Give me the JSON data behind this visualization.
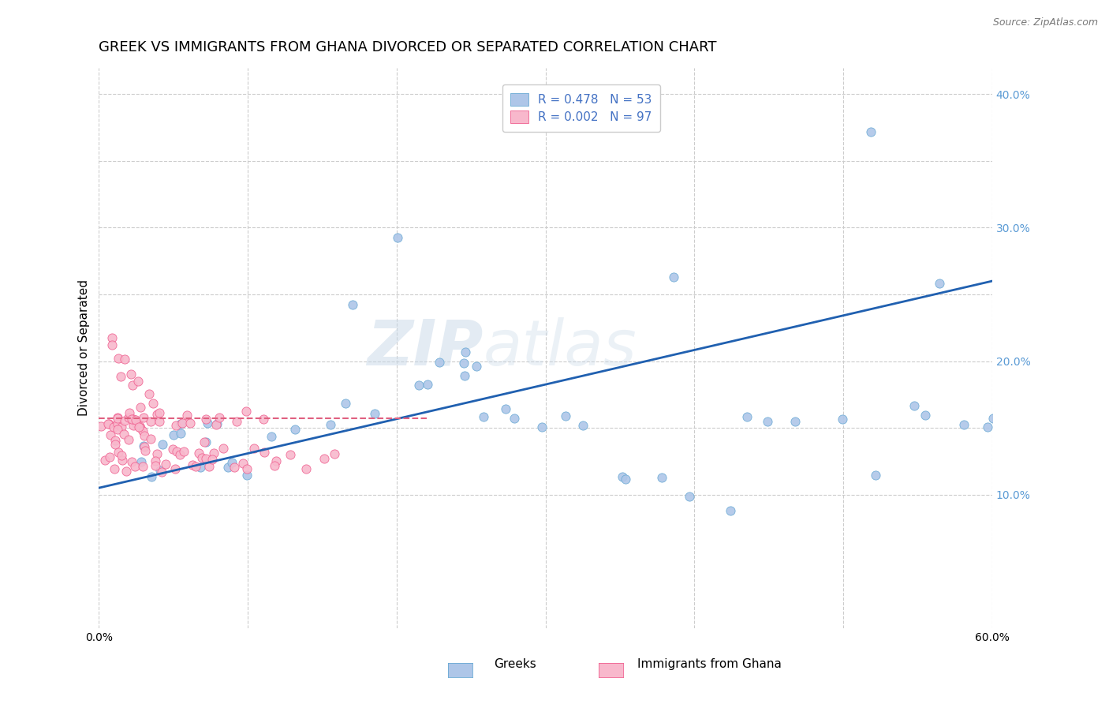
{
  "title": "GREEK VS IMMIGRANTS FROM GHANA DIVORCED OR SEPARATED CORRELATION CHART",
  "source": "Source: ZipAtlas.com",
  "ylabel": "Divorced or Separated",
  "watermark_zip": "ZIP",
  "watermark_atlas": "atlas",
  "blue_color": "#5b9bd5",
  "pink_color": "#f06090",
  "blue_scatter_face": "#aec6e8",
  "blue_scatter_edge": "#6aaad4",
  "pink_scatter_face": "#f8b8cc",
  "pink_scatter_edge": "#f06090",
  "blue_line_color": "#2060b0",
  "pink_line_color": "#e06080",
  "grid_color": "#cccccc",
  "xlim": [
    0.0,
    0.6
  ],
  "ylim": [
    0.0,
    0.42
  ],
  "bg_color": "#ffffff",
  "title_fontsize": 13,
  "axis_label_fontsize": 11,
  "tick_fontsize": 10,
  "legend_text_color": "#4472c4",
  "blue_trendline_x": [
    0.0,
    0.6
  ],
  "blue_trendline_y": [
    0.105,
    0.26
  ],
  "pink_trendline_x": [
    0.0,
    0.22
  ],
  "pink_trendline_y": [
    0.157,
    0.157
  ],
  "greek_x": [
    0.025,
    0.03,
    0.035,
    0.04,
    0.045,
    0.05,
    0.055,
    0.06,
    0.065,
    0.07,
    0.075,
    0.08,
    0.085,
    0.09,
    0.1,
    0.12,
    0.13,
    0.155,
    0.165,
    0.19,
    0.21,
    0.22,
    0.23,
    0.24,
    0.245,
    0.25,
    0.255,
    0.265,
    0.27,
    0.28,
    0.3,
    0.31,
    0.33,
    0.35,
    0.36,
    0.38,
    0.4,
    0.42,
    0.43,
    0.45,
    0.465,
    0.5,
    0.52,
    0.55,
    0.56,
    0.57,
    0.58,
    0.59,
    0.6,
    0.52,
    0.38,
    0.2,
    0.17
  ],
  "greek_y": [
    0.135,
    0.125,
    0.115,
    0.125,
    0.135,
    0.145,
    0.14,
    0.155,
    0.13,
    0.14,
    0.145,
    0.155,
    0.125,
    0.13,
    0.12,
    0.145,
    0.155,
    0.145,
    0.17,
    0.16,
    0.175,
    0.175,
    0.2,
    0.205,
    0.195,
    0.19,
    0.205,
    0.155,
    0.16,
    0.155,
    0.155,
    0.16,
    0.155,
    0.115,
    0.105,
    0.105,
    0.095,
    0.085,
    0.155,
    0.155,
    0.155,
    0.16,
    0.115,
    0.155,
    0.155,
    0.26,
    0.155,
    0.155,
    0.155,
    0.37,
    0.27,
    0.29,
    0.245
  ],
  "ghana_x": [
    0.003,
    0.005,
    0.006,
    0.007,
    0.008,
    0.009,
    0.01,
    0.011,
    0.012,
    0.013,
    0.014,
    0.015,
    0.016,
    0.017,
    0.018,
    0.019,
    0.02,
    0.021,
    0.022,
    0.023,
    0.024,
    0.025,
    0.026,
    0.027,
    0.028,
    0.029,
    0.03,
    0.031,
    0.032,
    0.033,
    0.034,
    0.035,
    0.005,
    0.008,
    0.01,
    0.012,
    0.015,
    0.018,
    0.02,
    0.022,
    0.025,
    0.028,
    0.03,
    0.032,
    0.035,
    0.038,
    0.04,
    0.042,
    0.045,
    0.048,
    0.05,
    0.053,
    0.055,
    0.058,
    0.06,
    0.063,
    0.065,
    0.068,
    0.07,
    0.073,
    0.075,
    0.078,
    0.08,
    0.085,
    0.09,
    0.095,
    0.1,
    0.105,
    0.11,
    0.115,
    0.12,
    0.13,
    0.14,
    0.15,
    0.16,
    0.008,
    0.01,
    0.012,
    0.015,
    0.018,
    0.02,
    0.025,
    0.028,
    0.032,
    0.035,
    0.04,
    0.045,
    0.05,
    0.055,
    0.06,
    0.065,
    0.07,
    0.075,
    0.08,
    0.09,
    0.1,
    0.11
  ],
  "ghana_y": [
    0.155,
    0.16,
    0.155,
    0.15,
    0.145,
    0.155,
    0.16,
    0.155,
    0.15,
    0.145,
    0.155,
    0.16,
    0.155,
    0.145,
    0.155,
    0.16,
    0.155,
    0.15,
    0.155,
    0.16,
    0.155,
    0.15,
    0.145,
    0.155,
    0.16,
    0.145,
    0.155,
    0.15,
    0.145,
    0.155,
    0.16,
    0.155,
    0.135,
    0.13,
    0.125,
    0.13,
    0.125,
    0.13,
    0.125,
    0.13,
    0.125,
    0.13,
    0.125,
    0.13,
    0.125,
    0.13,
    0.125,
    0.13,
    0.125,
    0.13,
    0.125,
    0.13,
    0.125,
    0.13,
    0.125,
    0.13,
    0.125,
    0.13,
    0.125,
    0.13,
    0.125,
    0.13,
    0.125,
    0.13,
    0.125,
    0.13,
    0.125,
    0.13,
    0.125,
    0.13,
    0.125,
    0.13,
    0.125,
    0.13,
    0.125,
    0.225,
    0.21,
    0.195,
    0.195,
    0.195,
    0.19,
    0.185,
    0.18,
    0.175,
    0.17,
    0.165,
    0.16,
    0.155,
    0.155,
    0.155,
    0.155,
    0.155,
    0.155,
    0.155,
    0.155,
    0.155,
    0.155
  ]
}
